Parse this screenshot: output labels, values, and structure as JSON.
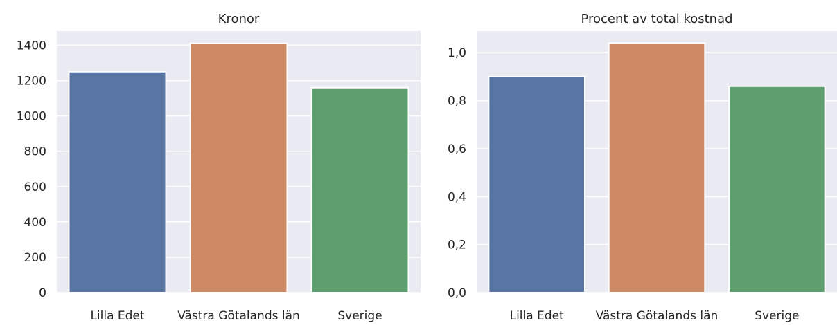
{
  "chart_data": [
    {
      "type": "bar",
      "title": "Kronor",
      "xlabel": "",
      "ylabel": "",
      "categories": [
        "Lilla Edet",
        "Västra Götalands län",
        "Sverige"
      ],
      "values": [
        1250,
        1410,
        1160
      ],
      "colors": [
        "#5875a4",
        "#cc8963",
        "#5f9e6e"
      ],
      "ylim": [
        0,
        1480
      ],
      "yticks": [
        0,
        200,
        400,
        600,
        800,
        1000,
        1200,
        1400
      ],
      "ytick_labels": [
        "0",
        "200",
        "400",
        "600",
        "800",
        "1000",
        "1200",
        "1400"
      ],
      "grid": true,
      "background": "#eaeaf2"
    },
    {
      "type": "bar",
      "title": "Procent av total kostnad",
      "xlabel": "",
      "ylabel": "",
      "categories": [
        "Lilla Edet",
        "Västra Götalands län",
        "Sverige"
      ],
      "values": [
        0.9,
        1.04,
        0.86
      ],
      "colors": [
        "#5875a4",
        "#cc8963",
        "#5f9e6e"
      ],
      "ylim": [
        0,
        1.09
      ],
      "yticks": [
        0,
        0.2,
        0.4,
        0.6,
        0.8,
        1.0
      ],
      "ytick_labels": [
        "0,0",
        "0,2",
        "0,4",
        "0,6",
        "0,8",
        "1,0"
      ],
      "grid": true,
      "background": "#eaeaf2"
    }
  ]
}
